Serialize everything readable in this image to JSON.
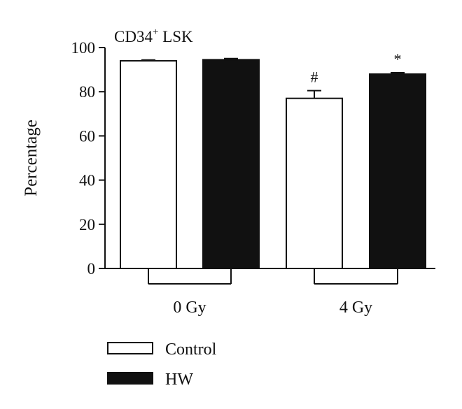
{
  "chart_data": {
    "type": "bar",
    "title_main": "CD34",
    "title_sup": "+",
    "title_rest": " LSK",
    "ylabel": "Percentage",
    "ylim": [
      0,
      100
    ],
    "yticks": [
      0,
      20,
      40,
      60,
      80,
      100
    ],
    "groups": [
      "0 Gy",
      "4 Gy"
    ],
    "series": [
      {
        "name": "Control",
        "fill": "#ffffff",
        "values": [
          94,
          77
        ],
        "errors": [
          0.4,
          3.5
        ]
      },
      {
        "name": "HW",
        "fill": "#111111",
        "values": [
          94.5,
          88
        ],
        "errors": [
          0.5,
          0.6
        ]
      }
    ],
    "annotations": [
      {
        "group": 1,
        "series": 0,
        "text": "#"
      },
      {
        "group": 1,
        "series": 1,
        "text": "*"
      }
    ]
  }
}
